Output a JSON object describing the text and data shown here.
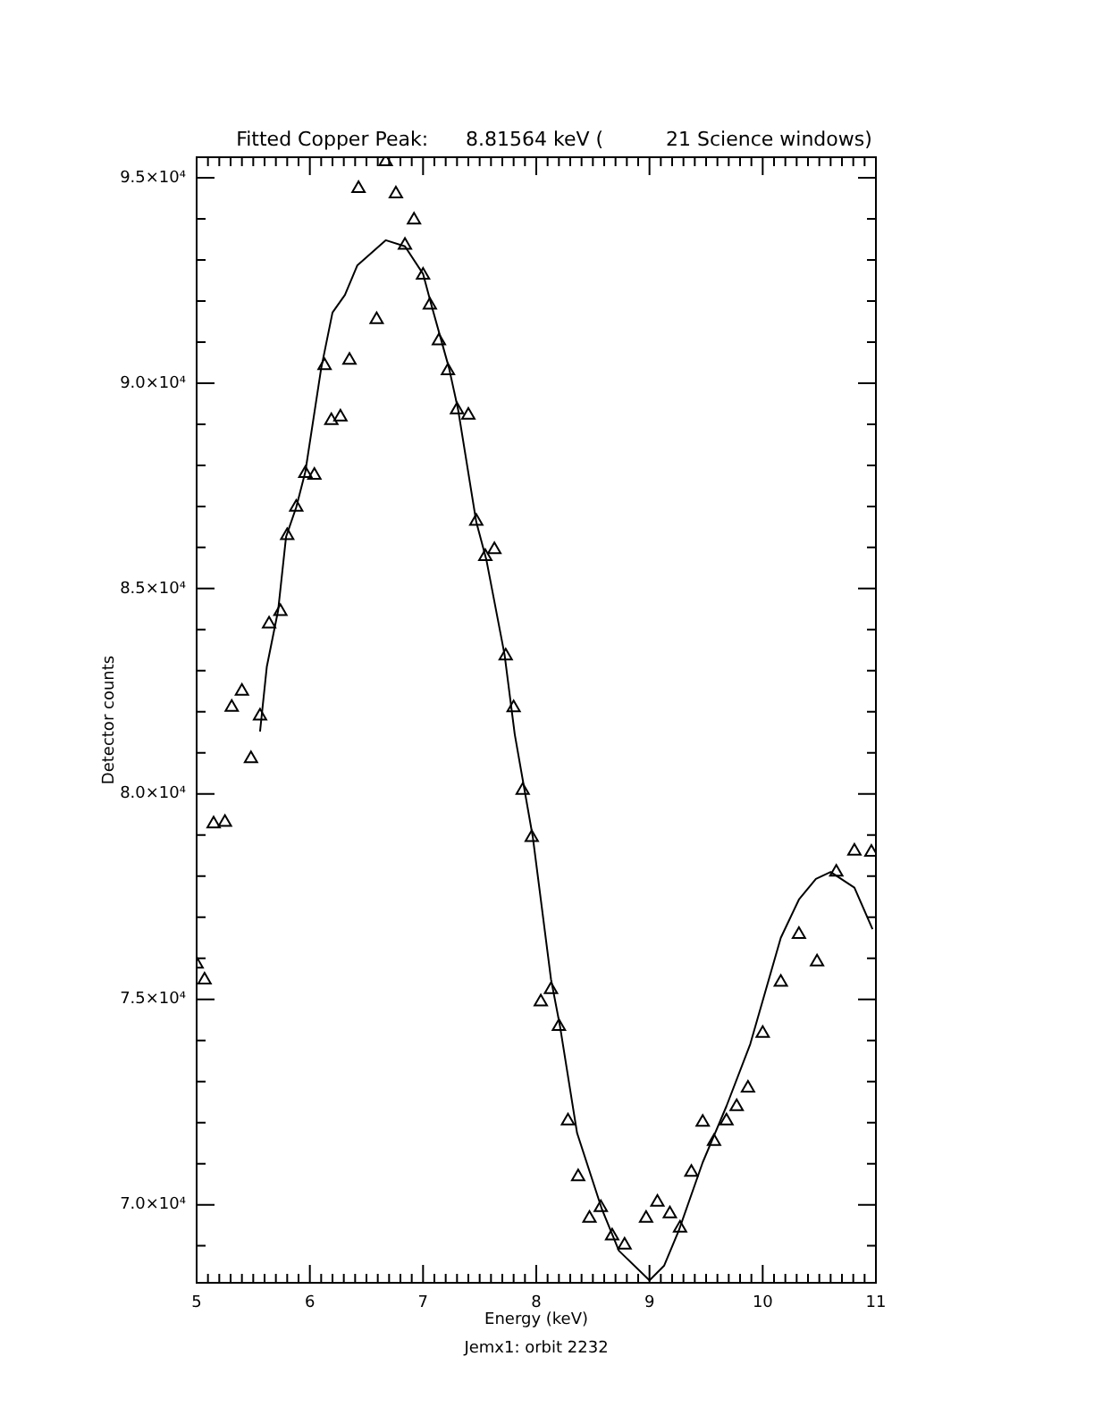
{
  "chart_data": {
    "type": "scatter",
    "title": "Fitted Copper Peak:      8.81564 keV (          21 Science windows)",
    "xlabel": "Energy (keV)",
    "ylabel": "Detector counts",
    "annotations": [
      "Jemx1: orbit 2232"
    ],
    "legend": false,
    "grid": false,
    "xlim": [
      5,
      11
    ],
    "ylim": [
      68100,
      95500
    ],
    "xticks": [
      5,
      {
        "value": 5.1,
        "label": null
      },
      {
        "value": 5.2,
        "label": null
      },
      {
        "value": 5.3,
        "label": null
      },
      {
        "value": 5.4,
        "label": null
      },
      {
        "value": 5.5,
        "label": null
      },
      {
        "value": 5.6,
        "label": null
      },
      {
        "value": 5.7,
        "label": null
      },
      {
        "value": 5.8,
        "label": null
      },
      {
        "value": 5.9,
        "label": null
      },
      6,
      {
        "value": 6.1,
        "label": null
      },
      {
        "value": 6.2,
        "label": null
      },
      {
        "value": 6.3,
        "label": null
      },
      {
        "value": 6.4,
        "label": null
      },
      {
        "value": 6.5,
        "label": null
      },
      {
        "value": 6.6,
        "label": null
      },
      {
        "value": 6.7,
        "label": null
      },
      {
        "value": 6.8,
        "label": null
      },
      {
        "value": 6.9,
        "label": null
      },
      7,
      {
        "value": 7.1,
        "label": null
      },
      {
        "value": 7.2,
        "label": null
      },
      {
        "value": 7.3,
        "label": null
      },
      {
        "value": 7.4,
        "label": null
      },
      {
        "value": 7.5,
        "label": null
      },
      {
        "value": 7.6,
        "label": null
      },
      {
        "value": 7.7,
        "label": null
      },
      {
        "value": 7.8,
        "label": null
      },
      {
        "value": 7.9,
        "label": null
      },
      8,
      {
        "value": 8.1,
        "label": null
      },
      {
        "value": 8.2,
        "label": null
      },
      {
        "value": 8.3,
        "label": null
      },
      {
        "value": 8.4,
        "label": null
      },
      {
        "value": 8.5,
        "label": null
      },
      {
        "value": 8.6,
        "label": null
      },
      {
        "value": 8.7,
        "label": null
      },
      {
        "value": 8.8,
        "label": null
      },
      {
        "value": 8.9,
        "label": null
      },
      9,
      {
        "value": 9.1,
        "label": null
      },
      {
        "value": 9.2,
        "label": null
      },
      {
        "value": 9.3,
        "label": null
      },
      {
        "value": 9.4,
        "label": null
      },
      {
        "value": 9.5,
        "label": null
      },
      {
        "value": 9.6,
        "label": null
      },
      {
        "value": 9.7,
        "label": null
      },
      {
        "value": 9.8,
        "label": null
      },
      {
        "value": 9.9,
        "label": null
      },
      10,
      {
        "value": 10.1,
        "label": null
      },
      {
        "value": 10.2,
        "label": null
      },
      {
        "value": 10.3,
        "label": null
      },
      {
        "value": 10.4,
        "label": null
      },
      {
        "value": 10.5,
        "label": null
      },
      {
        "value": 10.6,
        "label": null
      },
      {
        "value": 10.7,
        "label": null
      },
      {
        "value": 10.8,
        "label": null
      },
      {
        "value": 10.9,
        "label": null
      },
      11
    ],
    "yticks": [
      {
        "value": 69000,
        "label": null
      },
      {
        "value": 70000,
        "label": "7.0×10⁴"
      },
      {
        "value": 71000,
        "label": null
      },
      {
        "value": 72000,
        "label": null
      },
      {
        "value": 73000,
        "label": null
      },
      {
        "value": 74000,
        "label": null
      },
      {
        "value": 75000,
        "label": "7.5×10⁴"
      },
      {
        "value": 76000,
        "label": null
      },
      {
        "value": 77000,
        "label": null
      },
      {
        "value": 78000,
        "label": null
      },
      {
        "value": 79000,
        "label": null
      },
      {
        "value": 80000,
        "label": "8.0×10⁴"
      },
      {
        "value": 81000,
        "label": null
      },
      {
        "value": 82000,
        "label": null
      },
      {
        "value": 83000,
        "label": null
      },
      {
        "value": 84000,
        "label": null
      },
      {
        "value": 85000,
        "label": "8.5×10⁴"
      },
      {
        "value": 86000,
        "label": null
      },
      {
        "value": 87000,
        "label": null
      },
      {
        "value": 88000,
        "label": null
      },
      {
        "value": 89000,
        "label": null
      },
      {
        "value": 90000,
        "label": "9.0×10⁴"
      },
      {
        "value": 91000,
        "label": null
      },
      {
        "value": 92000,
        "label": null
      },
      {
        "value": 93000,
        "label": null
      },
      {
        "value": 94000,
        "label": null
      },
      {
        "value": 95000,
        "label": "9.5×10⁴"
      }
    ],
    "series": [
      {
        "marker": "triangle",
        "color": "#000000",
        "x": [
          5.0,
          5.07,
          5.15,
          5.25,
          5.31,
          5.4,
          5.48,
          5.56,
          5.64,
          5.74,
          5.8,
          5.88,
          5.96,
          6.04,
          6.13,
          6.19,
          6.27,
          6.35,
          6.43,
          6.59,
          6.67,
          6.76,
          6.84,
          6.92,
          7.0,
          7.06,
          7.14,
          7.22,
          7.3,
          7.4,
          7.47,
          7.55,
          7.63,
          7.73,
          7.8,
          7.88,
          7.96,
          8.04,
          8.13,
          8.2,
          8.28,
          8.37,
          8.47,
          8.57,
          8.67,
          8.78,
          8.97,
          9.07,
          9.18,
          9.27,
          9.37,
          9.47,
          9.57,
          9.68,
          9.77,
          9.87,
          10.0,
          10.16,
          10.32,
          10.48,
          10.65,
          10.81,
          10.96
        ],
        "values": [
          75860,
          75470,
          79270,
          79310,
          82110,
          82500,
          80860,
          81900,
          84140,
          84440,
          86290,
          86980,
          87800,
          87760,
          90430,
          89090,
          89180,
          90560,
          94740,
          91550,
          95390,
          94610,
          93360,
          93970,
          92630,
          91900,
          91030,
          90300,
          89350,
          89220,
          86640,
          85780,
          85950,
          83360,
          82100,
          80090,
          78940,
          74940,
          75240,
          74340,
          72040,
          70680,
          69670,
          69930,
          69240,
          69020,
          69670,
          70060,
          69780,
          69430,
          70790,
          72010,
          71540,
          72040,
          72390,
          72840,
          74170,
          75420,
          76580,
          75910,
          78100,
          78610,
          78580
        ]
      },
      {
        "type": "line",
        "marker": "none",
        "line_style": "solid",
        "color": "#000000",
        "x": [
          5.56,
          5.62,
          5.72,
          5.79,
          5.88,
          5.96,
          6.1,
          6.2,
          6.31,
          6.42,
          6.67,
          6.84,
          7.0,
          7.07,
          7.23,
          7.31,
          7.47,
          7.56,
          7.72,
          7.81,
          7.97,
          8.13,
          8.21,
          8.36,
          8.58,
          8.73,
          9.0,
          9.13,
          9.26,
          9.47,
          9.68,
          9.89,
          10.16,
          10.32,
          10.47,
          10.6,
          10.81,
          10.97
        ],
        "values": [
          81520,
          83100,
          84470,
          86260,
          86980,
          87840,
          90360,
          91720,
          92150,
          92870,
          93480,
          93330,
          92660,
          91940,
          90360,
          89350,
          86620,
          85690,
          83390,
          81450,
          78940,
          75490,
          74340,
          71750,
          69890,
          68880,
          68160,
          68520,
          69380,
          71030,
          72400,
          73910,
          76500,
          77430,
          77930,
          78100,
          77720,
          76710
        ]
      }
    ]
  }
}
